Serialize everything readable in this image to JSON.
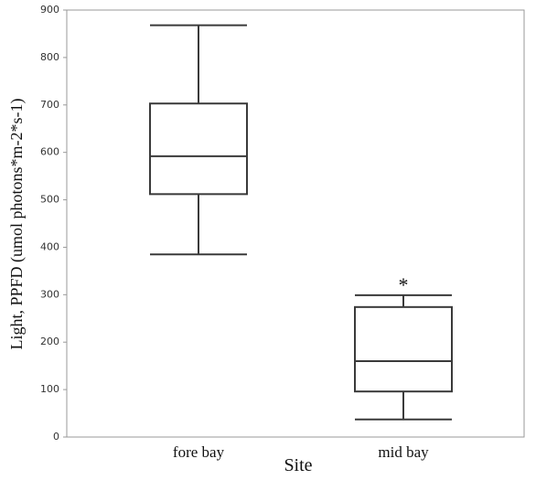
{
  "chart_data": {
    "type": "box",
    "categories": [
      "fore bay",
      "mid bay"
    ],
    "min": [
      385,
      37
    ],
    "q1": [
      512,
      96
    ],
    "median": [
      592,
      160
    ],
    "q3": [
      703,
      274
    ],
    "max": [
      868,
      299
    ],
    "annotation": "*",
    "xlabel": "Site",
    "ylabel": "Light, PPFD (umol photons*m-2*s-1)",
    "ylim": [
      0,
      900
    ],
    "yticks": [
      0,
      100,
      200,
      300,
      400,
      500,
      600,
      700,
      800,
      900
    ],
    "color": "#3a3a3a",
    "grid": false
  }
}
